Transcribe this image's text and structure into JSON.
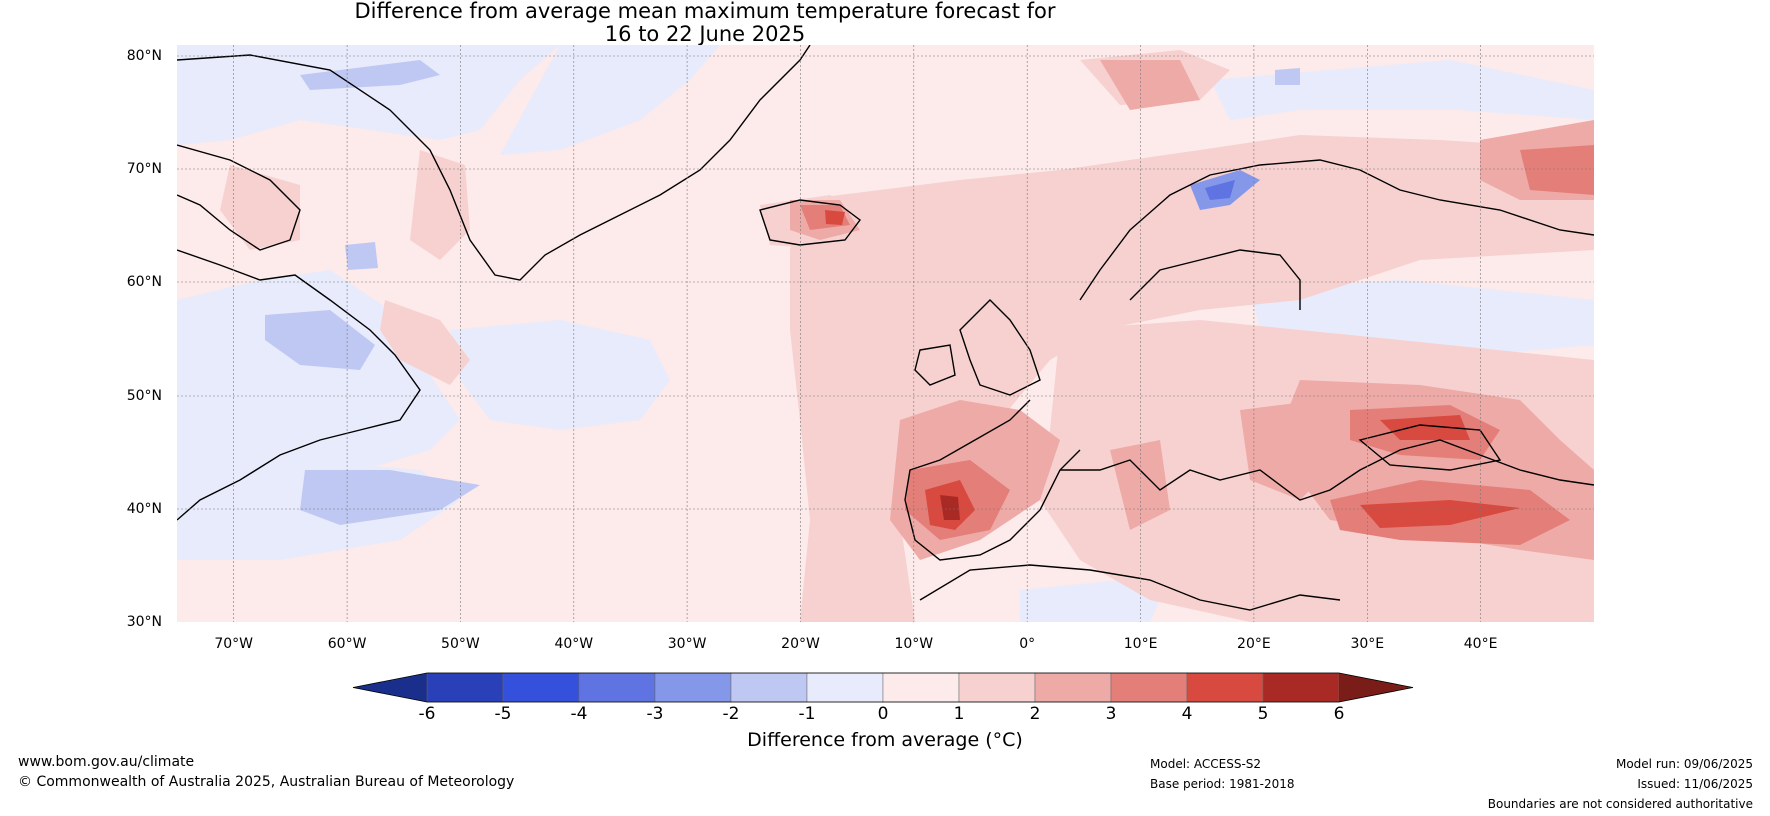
{
  "title_line1": "Difference from average mean maximum temperature forecast for",
  "title_line2": "16 to 22 June 2025",
  "map": {
    "lat_labels": [
      "80°N",
      "70°N",
      "60°N",
      "50°N",
      "40°N",
      "30°N"
    ],
    "lon_labels": [
      "70°W",
      "60°W",
      "50°W",
      "40°W",
      "30°W",
      "20°W",
      "10°W",
      "0°",
      "10°E",
      "20°E",
      "30°E",
      "40°E"
    ],
    "extent": {
      "lon_min": -75,
      "lon_max": 50,
      "lat_min": 30,
      "lat_max": 81
    }
  },
  "colorbar": {
    "label": "Difference from average (°C)",
    "ticks": [
      "-6",
      "-5",
      "-4",
      "-3",
      "-2",
      "-1",
      "0",
      "1",
      "2",
      "3",
      "4",
      "5",
      "6"
    ],
    "colors": [
      "#1a2f8c",
      "#2a40b8",
      "#3550dc",
      "#5f74e2",
      "#8497e8",
      "#bfc8f2",
      "#e8ebfb",
      "#fdeaea",
      "#f6d1d0",
      "#eeaaa7",
      "#e47e78",
      "#d8493f",
      "#a92a24",
      "#7a1d19"
    ]
  },
  "footer": {
    "website": "www.bom.gov.au/climate",
    "copyright": "© Commonwealth of Australia 2025, Australian Bureau of Meteorology",
    "model": "Model: ACCESS-S2",
    "base_period": "Base period: 1981-2018",
    "model_run": "Model run: 09/06/2025",
    "issued": "Issued: 11/06/2025",
    "disclaimer": "Boundaries are not considered authoritative"
  }
}
